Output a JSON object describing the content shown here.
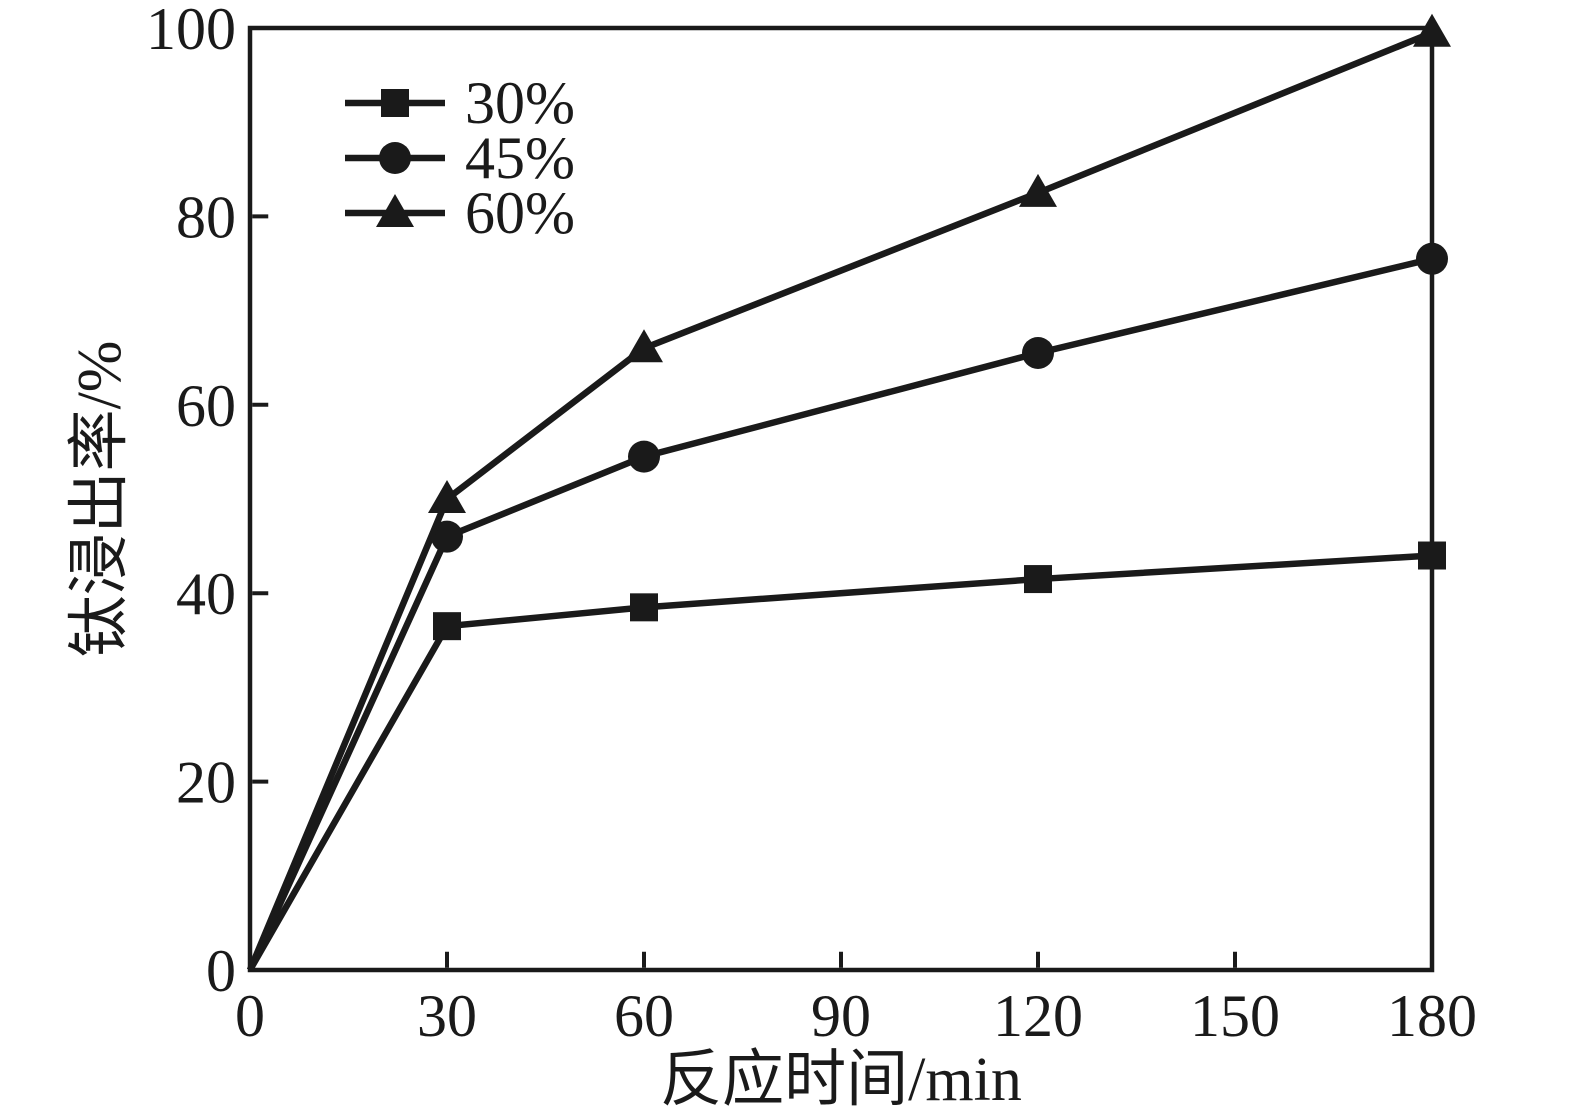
{
  "figure": {
    "background": "#ffffff",
    "ink_color": "#1a1a1a"
  },
  "chart_data": {
    "type": "line",
    "x": [
      0,
      30,
      60,
      120,
      180
    ],
    "series": [
      {
        "name": "30%",
        "marker": "square",
        "values": [
          0,
          36.5,
          38.5,
          41.5,
          44
        ]
      },
      {
        "name": "45%",
        "marker": "circle",
        "values": [
          0,
          46,
          54.5,
          65.5,
          75.5
        ]
      },
      {
        "name": "60%",
        "marker": "triangle",
        "values": [
          0,
          50,
          66,
          82.5,
          99.5
        ]
      }
    ],
    "xlabel": "反应时间/min",
    "ylabel": "钛浸出率/%",
    "xlim": [
      0,
      180
    ],
    "ylim": [
      0,
      100
    ],
    "x_ticks": [
      0,
      30,
      60,
      90,
      120,
      150,
      180
    ],
    "y_ticks": [
      0,
      20,
      40,
      60,
      80,
      100
    ],
    "legend": {
      "position": "top-left",
      "entries": [
        "30%",
        "45%",
        "60%"
      ]
    },
    "grid": false
  }
}
